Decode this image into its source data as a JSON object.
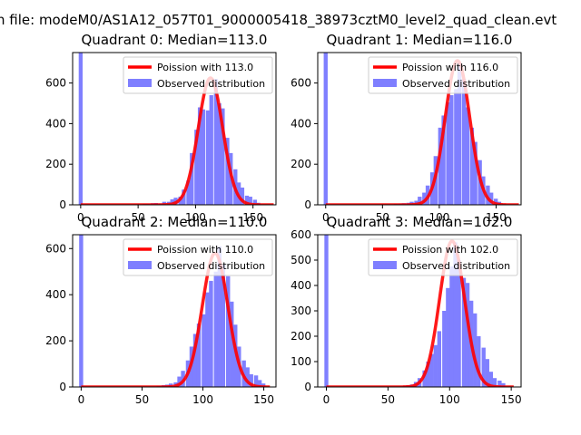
{
  "suptitle": "n file: modeM0/AS1A12_057T01_9000005418_38973cztM0_level2_quad_clean.evt",
  "colors": {
    "hist": "#7f7fff",
    "fit": "#ff0000",
    "axis": "#000000"
  },
  "chart_data": [
    {
      "type": "bar",
      "title": "Quadrant 0: Median=113.0",
      "xlim": [
        -7,
        170
      ],
      "ylim": [
        0,
        750
      ],
      "xticks": [
        0,
        50,
        100,
        150
      ],
      "yticks": [
        0,
        200,
        400,
        600
      ],
      "legend": [
        "Poission with 113.0",
        "Observed distribution"
      ],
      "legend_position": "top-right",
      "bin_width": 3.4,
      "zero_bin_value": 750,
      "median": 113.0,
      "fit_peak": 625,
      "fit_sigma": 10.6,
      "fit_range": [
        0,
        168
      ],
      "hist_bins": [
        [
          54,
          5
        ],
        [
          57,
          5
        ],
        [
          61,
          8
        ],
        [
          64,
          9
        ],
        [
          68,
          7
        ],
        [
          71,
          15
        ],
        [
          75,
          15
        ],
        [
          78,
          27
        ],
        [
          81,
          35
        ],
        [
          85,
          40
        ],
        [
          88,
          75
        ],
        [
          92,
          120
        ],
        [
          95,
          255
        ],
        [
          99,
          370
        ],
        [
          102,
          480
        ],
        [
          105,
          470
        ],
        [
          109,
          465
        ],
        [
          112,
          540
        ],
        [
          116,
          620
        ],
        [
          119,
          500
        ],
        [
          122,
          475
        ],
        [
          126,
          330
        ],
        [
          129,
          255
        ],
        [
          133,
          175
        ],
        [
          136,
          110
        ],
        [
          139,
          85
        ],
        [
          143,
          45
        ],
        [
          146,
          40
        ],
        [
          150,
          25
        ],
        [
          153,
          10
        ]
      ]
    },
    {
      "type": "bar",
      "title": "Quadrant 1: Median=116.0",
      "xlim": [
        -7,
        172
      ],
      "ylim": [
        0,
        750
      ],
      "xticks": [
        0,
        50,
        100,
        150
      ],
      "yticks": [
        0,
        200,
        400,
        600
      ],
      "legend": [
        "Poission with 116.0",
        "Observed distribution"
      ],
      "legend_position": "top-right",
      "bin_width": 3.5,
      "zero_bin_value": 750,
      "median": 116.0,
      "fit_peak": 710,
      "fit_sigma": 10.8,
      "fit_range": [
        0,
        170
      ],
      "hist_bins": [
        [
          60,
          5
        ],
        [
          64,
          6
        ],
        [
          67,
          8
        ],
        [
          71,
          10
        ],
        [
          74,
          15
        ],
        [
          78,
          20
        ],
        [
          81,
          40
        ],
        [
          85,
          60
        ],
        [
          88,
          95
        ],
        [
          92,
          160
        ],
        [
          95,
          240
        ],
        [
          99,
          380
        ],
        [
          102,
          440
        ],
        [
          106,
          505
        ],
        [
          109,
          540
        ],
        [
          113,
          570
        ],
        [
          116,
          700
        ],
        [
          120,
          620
        ],
        [
          123,
          480
        ],
        [
          127,
          380
        ],
        [
          130,
          310
        ],
        [
          134,
          220
        ],
        [
          137,
          140
        ],
        [
          141,
          95
        ],
        [
          144,
          60
        ],
        [
          148,
          30
        ],
        [
          151,
          15
        ],
        [
          155,
          5
        ]
      ]
    },
    {
      "type": "bar",
      "title": "Quadrant 2: Median=110.0",
      "xlim": [
        -7,
        160
      ],
      "ylim": [
        0,
        660
      ],
      "xticks": [
        0,
        50,
        100,
        150
      ],
      "yticks": [
        0,
        200,
        400,
        600
      ],
      "legend": [
        "Poission with 110.0",
        "Observed distribution"
      ],
      "legend_position": "top-right",
      "bin_width": 3.3,
      "zero_bin_value": 660,
      "median": 110.0,
      "fit_peak": 580,
      "fit_sigma": 10.5,
      "fit_range": [
        0,
        155
      ],
      "hist_bins": [
        [
          62,
          5
        ],
        [
          66,
          8
        ],
        [
          69,
          10
        ],
        [
          72,
          15
        ],
        [
          76,
          20
        ],
        [
          79,
          45
        ],
        [
          82,
          70
        ],
        [
          86,
          115
        ],
        [
          89,
          175
        ],
        [
          92,
          230
        ],
        [
          95,
          275
        ],
        [
          99,
          315
        ],
        [
          102,
          410
        ],
        [
          105,
          460
        ],
        [
          109,
          500
        ],
        [
          112,
          610
        ],
        [
          115,
          530
        ],
        [
          119,
          480
        ],
        [
          122,
          370
        ],
        [
          125,
          270
        ],
        [
          128,
          175
        ],
        [
          132,
          115
        ],
        [
          135,
          85
        ],
        [
          138,
          55
        ],
        [
          142,
          50
        ],
        [
          145,
          30
        ],
        [
          148,
          15
        ]
      ]
    },
    {
      "type": "bar",
      "title": "Quadrant 3: Median=102.0",
      "xlim": [
        -7,
        158
      ],
      "ylim": [
        0,
        600
      ],
      "xticks": [
        0,
        50,
        100,
        150
      ],
      "yticks": [
        0,
        100,
        200,
        300,
        400,
        500,
        600
      ],
      "legend": [
        "Poission with 102.0",
        "Observed distribution"
      ],
      "legend_position": "top-right",
      "bin_width": 3.2,
      "zero_bin_value": 600,
      "median": 102.0,
      "fit_peak": 575,
      "fit_sigma": 10.1,
      "fit_range": [
        0,
        152
      ],
      "hist_bins": [
        [
          62,
          5
        ],
        [
          65,
          7
        ],
        [
          68,
          10
        ],
        [
          71,
          20
        ],
        [
          74,
          35
        ],
        [
          78,
          65
        ],
        [
          81,
          100
        ],
        [
          84,
          130
        ],
        [
          87,
          165
        ],
        [
          90,
          220
        ],
        [
          94,
          300
        ],
        [
          97,
          390
        ],
        [
          100,
          475
        ],
        [
          103,
          570
        ],
        [
          106,
          500
        ],
        [
          110,
          430
        ],
        [
          113,
          410
        ],
        [
          116,
          340
        ],
        [
          119,
          290
        ],
        [
          122,
          200
        ],
        [
          126,
          155
        ],
        [
          129,
          110
        ],
        [
          132,
          60
        ],
        [
          135,
          35
        ],
        [
          139,
          25
        ],
        [
          142,
          15
        ]
      ]
    }
  ]
}
